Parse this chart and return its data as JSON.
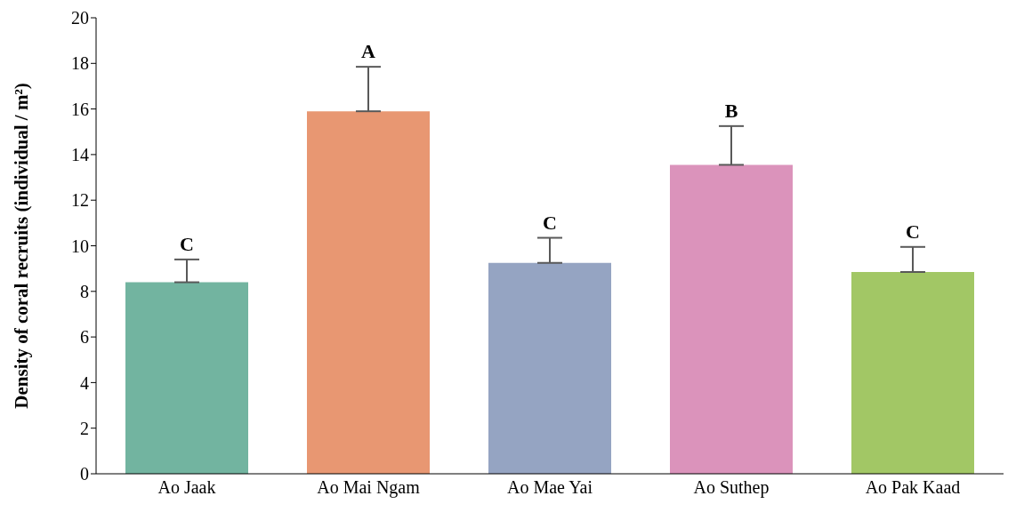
{
  "chart_data": {
    "type": "bar",
    "ylabel": "Density of coral recruits (individual / m²)",
    "categories": [
      "Ao Jaak",
      "Ao Mai Ngam",
      "Ao Mae Yai",
      "Ao Suthep",
      "Ao Pak Kaad"
    ],
    "values": [
      8.4,
      15.9,
      9.25,
      13.55,
      8.85
    ],
    "colors": [
      "#72b4a0",
      "#e89772",
      "#95a4c2",
      "#db93bb",
      "#a2c765"
    ],
    "errors": [
      [
        8.4,
        9.4
      ],
      [
        15.9,
        17.85
      ],
      [
        9.25,
        10.35
      ],
      [
        13.55,
        15.25
      ],
      [
        8.85,
        9.95
      ]
    ],
    "ylim": [
      0,
      20
    ],
    "yticks": [
      0,
      2,
      4,
      6,
      8,
      10,
      12,
      14,
      16,
      18,
      20
    ],
    "grid": false,
    "annotations": [
      {
        "text": "C",
        "x": "Ao Jaak",
        "y": 9.4
      },
      {
        "text": "A",
        "x": "Ao Mai Ngam",
        "y": 17.85
      },
      {
        "text": "C",
        "x": "Ao Mae Yai",
        "y": 10.35
      },
      {
        "text": "B",
        "x": "Ao Suthep",
        "y": 15.25
      },
      {
        "text": "C",
        "x": "Ao Pak Kaad",
        "y": 9.95
      }
    ]
  }
}
